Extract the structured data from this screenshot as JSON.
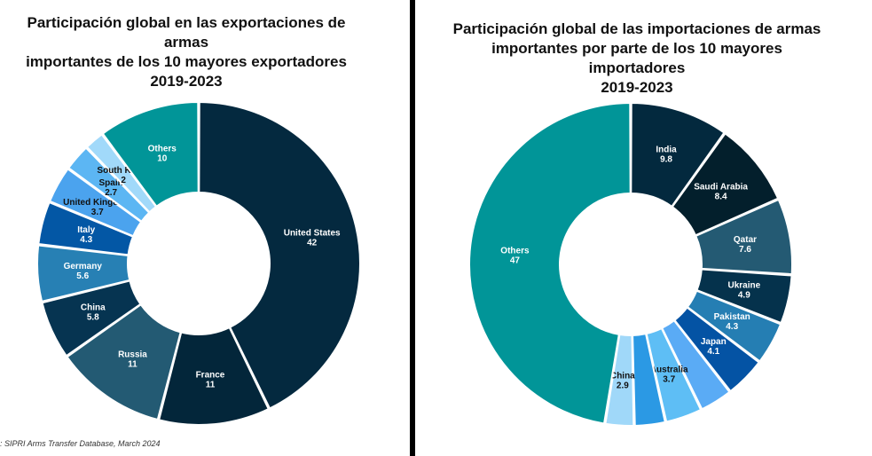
{
  "colors": {
    "divider": "#000000"
  },
  "source_text": ": SIPRI Arms Transfer Database, March 2024",
  "chart_data": [
    {
      "type": "pie",
      "donut": true,
      "title_lines": [
        "Participación global en las exportaciones de armas",
        "importantes de los 10 mayores exportadores",
        "2019-2023"
      ],
      "categories": [
        "United States",
        "France",
        "Russia",
        "China",
        "Germany",
        "Italy",
        "United Kingdom",
        "Spain",
        "South Korea",
        "Others"
      ],
      "values": [
        42,
        11,
        11,
        5.8,
        5.6,
        4.3,
        3.7,
        2.7,
        2,
        10
      ],
      "value_labels": [
        "42",
        "11",
        "11",
        "5.8",
        "5.6",
        "4.3",
        "3.7",
        "2.7",
        "2",
        "10"
      ],
      "colors": [
        "#04293f",
        "#03263a",
        "#235a73",
        "#063451",
        "#2780b4",
        "#0357a5",
        "#4ba3ee",
        "#5cb6f3",
        "#a1d9fa",
        "#019598"
      ],
      "label_colors": [
        "#ffffff",
        "#ffffff",
        "#ffffff",
        "#ffffff",
        "#ffffff",
        "#ffffff",
        "#111111",
        "#111111",
        "#111111",
        "#ffffff"
      ]
    },
    {
      "type": "pie",
      "donut": true,
      "title_lines": [
        "Participación global de las importaciones de armas",
        "importantes por parte de los 10 mayores importadores",
        "2019-2023"
      ],
      "categories": [
        "India",
        "Saudi Arabia",
        "Qatar",
        "Ukraine",
        "Pakistan",
        "Japan",
        "",
        "Australia",
        "",
        "China",
        "Others"
      ],
      "values": [
        9.8,
        8.4,
        7.6,
        4.9,
        4.3,
        4.1,
        3.3,
        3.7,
        3.1,
        2.9,
        47
      ],
      "value_labels": [
        "9.8",
        "8.4",
        "7.6",
        "4.9",
        "4.3",
        "4.1",
        "",
        "3.7",
        "",
        "2.9",
        "47"
      ],
      "colors": [
        "#03293e",
        "#031f2c",
        "#245a73",
        "#05324c",
        "#257eb3",
        "#0453a4",
        "#5aabf5",
        "#5ebef5",
        "#2b99e4",
        "#a0d8f9",
        "#019598"
      ],
      "label_colors": [
        "#ffffff",
        "#ffffff",
        "#ffffff",
        "#ffffff",
        "#ffffff",
        "#ffffff",
        "#ffffff",
        "#111111",
        "#ffffff",
        "#111111",
        "#ffffff"
      ]
    }
  ]
}
